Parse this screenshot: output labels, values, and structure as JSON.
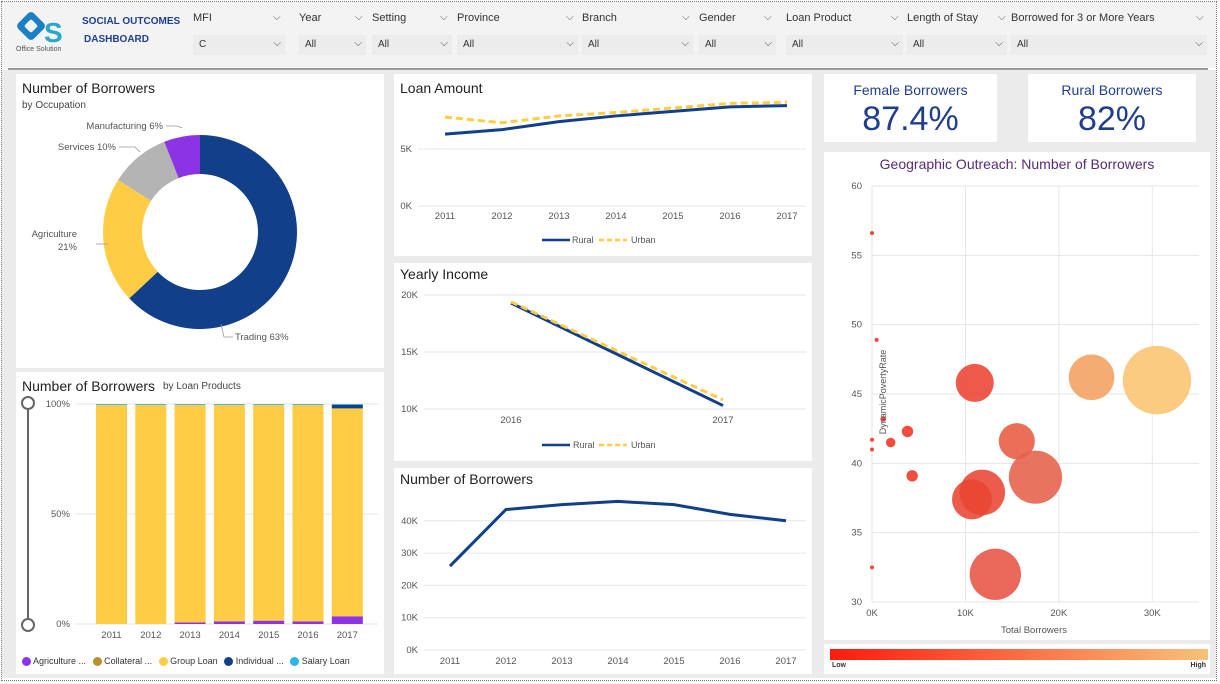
{
  "header": {
    "logo_text": "Office Solution",
    "title_line1": "SOCIAL OUTCOMES",
    "title_line2": "DASHBOARD"
  },
  "filters": [
    {
      "label": "MFI",
      "value": "C"
    },
    {
      "label": "Year",
      "value": "All"
    },
    {
      "label": "Setting",
      "value": "All"
    },
    {
      "label": "Province",
      "value": "All"
    },
    {
      "label": "Branch",
      "value": "All"
    },
    {
      "label": "Gender",
      "value": "All"
    },
    {
      "label": "Loan Product",
      "value": "All"
    },
    {
      "label": "Length of Stay",
      "value": "All"
    },
    {
      "label": "Borrowed for 3 or More Years",
      "value": "All"
    }
  ],
  "occupation": {
    "title": "Number of Borrowers",
    "subtitle": "by Occupation",
    "labels": {
      "manufacturing": "Manufacturing 6%",
      "services": "Services 10%",
      "agriculture1": "Agriculture",
      "agriculture2": "21%",
      "trading": "Trading 63%"
    },
    "chart_data": {
      "type": "pie",
      "categories": [
        "Trading",
        "Agriculture",
        "Services",
        "Manufacturing"
      ],
      "values": [
        63,
        21,
        10,
        6
      ],
      "colors": [
        "#123f8a",
        "#ffcc44",
        "#b4b4b4",
        "#8c33e6"
      ]
    }
  },
  "loan_products": {
    "title": "Number of Borrowers",
    "subtitle": "by Loan Products",
    "y_ticks": [
      "100%",
      "50%",
      "0%"
    ],
    "years": [
      "2011",
      "2012",
      "2013",
      "2014",
      "2015",
      "2016",
      "2017"
    ],
    "legend": [
      {
        "label": "Agriculture ...",
        "color": "#8c33e6"
      },
      {
        "label": "Collateral ...",
        "color": "#b8902f"
      },
      {
        "label": "Group Loan",
        "color": "#ffcc44"
      },
      {
        "label": "Individual ...",
        "color": "#123f8a"
      },
      {
        "label": "Salary Loan",
        "color": "#29b6e8"
      }
    ],
    "chart_data": {
      "type": "bar",
      "stacked": true,
      "categories": [
        "2011",
        "2012",
        "2013",
        "2014",
        "2015",
        "2016",
        "2017"
      ],
      "series": [
        {
          "name": "Agriculture",
          "values": [
            0,
            0,
            0.7,
            1.2,
            1.5,
            1.2,
            3.5
          ]
        },
        {
          "name": "Collateral",
          "values": [
            0,
            0,
            0,
            0,
            0,
            0,
            0
          ]
        },
        {
          "name": "Group Loan",
          "values": [
            99.6,
            99.6,
            98.9,
            98.4,
            98.1,
            98.4,
            94.5
          ]
        },
        {
          "name": "Individual",
          "values": [
            0,
            0,
            0,
            0,
            0,
            0,
            1.6
          ]
        },
        {
          "name": "Salary Loan",
          "values": [
            0.4,
            0.4,
            0.4,
            0.4,
            0.4,
            0.4,
            0.4
          ]
        }
      ],
      "ylim": [
        0,
        100
      ]
    }
  },
  "loan_amount": {
    "title": "Loan Amount",
    "y_ticks": [
      "5K",
      "0K"
    ],
    "x_ticks": [
      "2011",
      "2012",
      "2013",
      "2014",
      "2015",
      "2016",
      "2017"
    ],
    "legend": [
      {
        "label": "Rural",
        "color": "#123f8a"
      },
      {
        "label": "Urban",
        "color": "#ffcc44"
      }
    ],
    "chart_data": {
      "type": "line",
      "categories": [
        "2011",
        "2012",
        "2013",
        "2014",
        "2015",
        "2016",
        "2017"
      ],
      "series": [
        {
          "name": "Rural",
          "values": [
            6300,
            6700,
            7400,
            7900,
            8300,
            8700,
            8800
          ]
        },
        {
          "name": "Urban",
          "values": [
            7800,
            7300,
            7900,
            8200,
            8600,
            9000,
            9100
          ]
        }
      ],
      "ylim": [
        0,
        10000
      ]
    }
  },
  "yearly_income": {
    "title": "Yearly Income",
    "y_ticks": [
      "20K",
      "15K",
      "10K"
    ],
    "x_ticks": [
      "2016",
      "2017"
    ],
    "legend": [
      {
        "label": "Rural",
        "color": "#123f8a"
      },
      {
        "label": "Urban",
        "color": "#ffcc44"
      }
    ],
    "chart_data": {
      "type": "line",
      "categories": [
        "2016",
        "2017"
      ],
      "series": [
        {
          "name": "Rural",
          "values": [
            19300,
            10300
          ]
        },
        {
          "name": "Urban",
          "values": [
            19400,
            10800
          ]
        }
      ],
      "ylim": [
        10000,
        20000
      ]
    }
  },
  "borrowers_trend": {
    "title": "Number of Borrowers",
    "y_ticks": [
      "40K",
      "30K",
      "20K",
      "10K",
      "0K"
    ],
    "x_ticks": [
      "2011",
      "2012",
      "2013",
      "2014",
      "2015",
      "2016",
      "2017"
    ],
    "chart_data": {
      "type": "line",
      "categories": [
        "2011",
        "2012",
        "2013",
        "2014",
        "2015",
        "2016",
        "2017"
      ],
      "series": [
        {
          "name": "Borrowers",
          "values": [
            26000,
            43500,
            45000,
            46000,
            45000,
            42000,
            40000
          ]
        }
      ],
      "ylim": [
        0,
        45000
      ]
    }
  },
  "kpi": {
    "female_label": "Female Borrowers",
    "female_value": "87.4%",
    "rural_label": "Rural Borrowers",
    "rural_value": "82%"
  },
  "geo": {
    "title": "Geographic Outreach: Number of Borrowers",
    "ylabel": "DynamicPovertyRate",
    "xlabel": "Total Borrowers",
    "x_ticks": [
      "0K",
      "10K",
      "20K",
      "30K"
    ],
    "y_ticks": [
      "60",
      "55",
      "50",
      "45",
      "40",
      "35",
      "30"
    ],
    "scale_low": "Low",
    "scale_high": "High",
    "chart_data": {
      "type": "scatter",
      "xlim": [
        0,
        35000
      ],
      "ylim": [
        30,
        60
      ],
      "points": [
        {
          "x": 0,
          "y": 56.6,
          "size": 1,
          "color": "#ff2a1a"
        },
        {
          "x": 500,
          "y": 48.9,
          "size": 2,
          "color": "#ff2a1a"
        },
        {
          "x": 1200,
          "y": 43.2,
          "size": 3,
          "color": "#f23322"
        },
        {
          "x": 0,
          "y": 41.7,
          "size": 1,
          "color": "#ff2a1a"
        },
        {
          "x": 0,
          "y": 41.0,
          "size": 1,
          "color": "#ff2a1a"
        },
        {
          "x": 2000,
          "y": 41.5,
          "size": 5,
          "color": "#f23322"
        },
        {
          "x": 3800,
          "y": 42.3,
          "size": 6,
          "color": "#f03324"
        },
        {
          "x": 4300,
          "y": 39.1,
          "size": 6,
          "color": "#f03324"
        },
        {
          "x": 0,
          "y": 32.5,
          "size": 1,
          "color": "#ff2a1a"
        },
        {
          "x": 11000,
          "y": 45.8,
          "size": 20,
          "color": "#ec4231"
        },
        {
          "x": 15500,
          "y": 41.6,
          "size": 19,
          "color": "#e85a40"
        },
        {
          "x": 11800,
          "y": 37.9,
          "size": 24,
          "color": "#e84532"
        },
        {
          "x": 10700,
          "y": 37.4,
          "size": 21,
          "color": "#e84532"
        },
        {
          "x": 17500,
          "y": 39.0,
          "size": 28,
          "color": "#e5614a"
        },
        {
          "x": 13200,
          "y": 32.0,
          "size": 27,
          "color": "#e65342"
        },
        {
          "x": 23500,
          "y": 46.2,
          "size": 24,
          "color": "#f2a060"
        },
        {
          "x": 30500,
          "y": 46.0,
          "size": 36,
          "color": "#fbc471"
        }
      ]
    }
  }
}
